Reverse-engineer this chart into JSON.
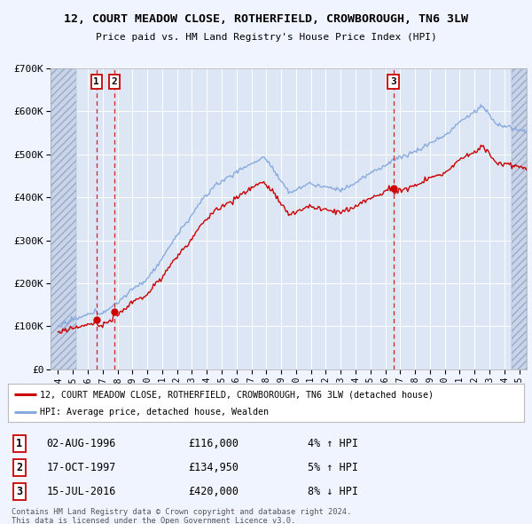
{
  "title": "12, COURT MEADOW CLOSE, ROTHERFIELD, CROWBOROUGH, TN6 3LW",
  "subtitle": "Price paid vs. HM Land Registry's House Price Index (HPI)",
  "legend_line1": "12, COURT MEADOW CLOSE, ROTHERFIELD, CROWBOROUGH, TN6 3LW (detached house)",
  "legend_line2": "HPI: Average price, detached house, Wealden",
  "sale_events": [
    {
      "label": "1",
      "date": "02-AUG-1996",
      "year": 1996.58,
      "price": 116000,
      "pct": "4%",
      "dir": "↑"
    },
    {
      "label": "2",
      "date": "17-OCT-1997",
      "year": 1997.79,
      "price": 134950,
      "pct": "5%",
      "dir": "↑"
    },
    {
      "label": "3",
      "date": "15-JUL-2016",
      "year": 2016.54,
      "price": 420000,
      "pct": "8%",
      "dir": "↓"
    }
  ],
  "footer_line1": "Contains HM Land Registry data © Crown copyright and database right 2024.",
  "footer_line2": "This data is licensed under the Open Government Licence v3.0.",
  "ylim": [
    0,
    700000
  ],
  "xlim_start": 1993.5,
  "xlim_end": 2025.5,
  "hatch_end_year": 1995.25,
  "hatch_start_right": 2024.5,
  "background_color": "#f0f4ff",
  "plot_bg_color": "#dce6f5",
  "hatch_color": "#b8c8e0",
  "red_color": "#cc0000",
  "blue_color": "#88aadd",
  "grid_color": "#ffffff"
}
